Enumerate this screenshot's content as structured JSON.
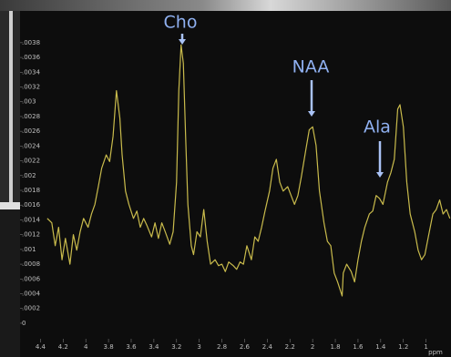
{
  "chart_data": {
    "type": "line",
    "xlabel": "ppm",
    "color": "#c9bb4c",
    "xlim": [
      4.58,
      0.78
    ],
    "ylim": [
      -0.000457,
      0.00423
    ],
    "xticks": [
      4.4,
      4.2,
      4,
      3.8,
      3.6,
      3.4,
      3.2,
      3,
      2.8,
      2.6,
      2.4,
      2.2,
      2,
      1.8,
      1.6,
      1.4,
      1.2,
      1
    ],
    "yticks": [
      {
        "value": 0,
        "label": "0"
      },
      {
        "value": 0.0002,
        "label": ".0002"
      },
      {
        "value": 0.0004,
        "label": ".0004"
      },
      {
        "value": 0.0006,
        "label": ".0006"
      },
      {
        "value": 0.0008,
        "label": ".0008"
      },
      {
        "value": 0.001,
        "label": ".001"
      },
      {
        "value": 0.0012,
        "label": ".0012"
      },
      {
        "value": 0.0014,
        "label": ".0014"
      },
      {
        "value": 0.0016,
        "label": ".0016"
      },
      {
        "value": 0.0018,
        "label": ".0018"
      },
      {
        "value": 0.002,
        "label": ".002"
      },
      {
        "value": 0.0022,
        "label": ".0022"
      },
      {
        "value": 0.0024,
        "label": ".0024"
      },
      {
        "value": 0.0026,
        "label": ".0026"
      },
      {
        "value": 0.0028,
        "label": ".0028"
      },
      {
        "value": 0.003,
        "label": ".003"
      },
      {
        "value": 0.0032,
        "label": ".0032"
      },
      {
        "value": 0.0034,
        "label": ".0034"
      },
      {
        "value": 0.0036,
        "label": ".0036"
      },
      {
        "value": 0.0038,
        "label": ".0038"
      }
    ],
    "x": [
      4.34,
      4.3,
      4.27,
      4.24,
      4.21,
      4.18,
      4.14,
      4.11,
      4.08,
      4.05,
      4.02,
      3.98,
      3.95,
      3.92,
      3.89,
      3.86,
      3.82,
      3.79,
      3.76,
      3.73,
      3.7,
      3.68,
      3.65,
      3.62,
      3.58,
      3.55,
      3.52,
      3.49,
      3.46,
      3.42,
      3.39,
      3.36,
      3.33,
      3.3,
      3.26,
      3.23,
      3.2,
      3.18,
      3.16,
      3.14,
      3.12,
      3.1,
      3.07,
      3.05,
      3.02,
      2.99,
      2.96,
      2.93,
      2.9,
      2.86,
      2.83,
      2.8,
      2.77,
      2.74,
      2.7,
      2.67,
      2.64,
      2.61,
      2.58,
      2.54,
      2.51,
      2.48,
      2.45,
      2.42,
      2.38,
      2.35,
      2.32,
      2.29,
      2.26,
      2.22,
      2.19,
      2.16,
      2.13,
      2.1,
      2.06,
      2.03,
      2.0,
      1.97,
      1.94,
      1.9,
      1.87,
      1.84,
      1.81,
      1.78,
      1.74,
      1.73,
      1.7,
      1.66,
      1.63,
      1.6,
      1.57,
      1.54,
      1.5,
      1.47,
      1.44,
      1.41,
      1.38,
      1.34,
      1.31,
      1.28,
      1.25,
      1.23,
      1.2,
      1.17,
      1.14,
      1.1,
      1.07,
      1.04,
      1.01,
      0.98,
      0.94,
      0.91,
      0.88,
      0.85,
      0.82,
      0.79
    ],
    "values": [
      0.00142,
      0.00136,
      0.00105,
      0.0013,
      0.00086,
      0.00115,
      0.0008,
      0.0012,
      0.00099,
      0.00124,
      0.00142,
      0.0013,
      0.00148,
      0.00161,
      0.00185,
      0.0021,
      0.00228,
      0.00219,
      0.00253,
      0.00315,
      0.00278,
      0.00228,
      0.00179,
      0.00161,
      0.00142,
      0.00152,
      0.0013,
      0.00142,
      0.00132,
      0.00117,
      0.00136,
      0.00115,
      0.00136,
      0.00124,
      0.00107,
      0.00124,
      0.00191,
      0.00315,
      0.00377,
      0.00352,
      0.00253,
      0.00161,
      0.00105,
      0.00093,
      0.00124,
      0.00117,
      0.00154,
      0.00111,
      0.0008,
      0.00086,
      0.00078,
      0.0008,
      0.0007,
      0.00083,
      0.00078,
      0.00073,
      0.00083,
      0.0008,
      0.00105,
      0.00086,
      0.00117,
      0.00111,
      0.0013,
      0.00152,
      0.00179,
      0.0021,
      0.00222,
      0.00191,
      0.00179,
      0.00185,
      0.00173,
      0.00161,
      0.00173,
      0.00198,
      0.00235,
      0.00262,
      0.00266,
      0.00241,
      0.00179,
      0.00136,
      0.00111,
      0.00105,
      0.00068,
      0.00056,
      0.00037,
      0.00068,
      0.0008,
      0.0007,
      0.00056,
      0.00086,
      0.00111,
      0.0013,
      0.00148,
      0.00152,
      0.00173,
      0.00169,
      0.00161,
      0.00191,
      0.00204,
      0.00222,
      0.0029,
      0.00296,
      0.00266,
      0.00191,
      0.00148,
      0.00124,
      0.00099,
      0.00086,
      0.00093,
      0.00117,
      0.00148,
      0.00154,
      0.00167,
      0.00148,
      0.00154,
      0.00142
    ],
    "annotations": [
      {
        "text": "Cho"
      },
      {
        "text": "NAA"
      },
      {
        "text": "Ala"
      }
    ]
  }
}
